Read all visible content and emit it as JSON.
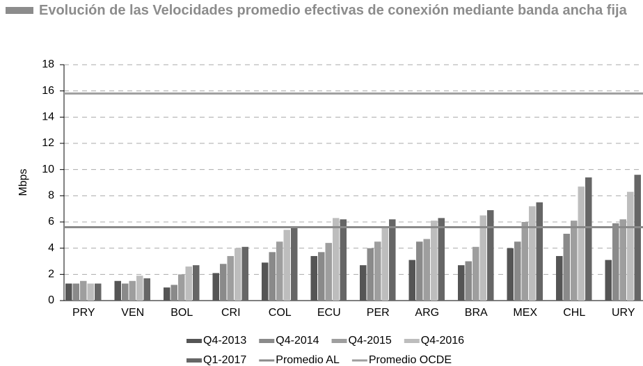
{
  "chart_data": {
    "type": "bar",
    "title": "Evolución de las Velocidades promedio efectivas de conexión mediante banda ancha fija",
    "y_label": "Mbps",
    "categories": [
      "PRY",
      "VEN",
      "BOL",
      "CRI",
      "COL",
      "ECU",
      "PER",
      "ARG",
      "BRA",
      "MEX",
      "CHL",
      "URY"
    ],
    "series": [
      {
        "name": "Q4-2013",
        "color": "#555555",
        "values": [
          1.3,
          1.5,
          1.0,
          2.1,
          2.9,
          3.4,
          2.7,
          3.1,
          2.7,
          4.0,
          3.4,
          3.1
        ]
      },
      {
        "name": "Q4-2014",
        "color": "#8a8a8a",
        "values": [
          1.3,
          1.3,
          1.2,
          2.8,
          3.7,
          3.7,
          4.0,
          4.5,
          3.0,
          4.5,
          5.1,
          5.9
        ]
      },
      {
        "name": "Q4-2015",
        "color": "#9e9e9e",
        "values": [
          1.5,
          1.5,
          2.0,
          3.4,
          4.5,
          4.4,
          4.5,
          4.7,
          4.1,
          6.0,
          6.1,
          6.2
        ]
      },
      {
        "name": "Q4-2016",
        "color": "#bdbdbd",
        "values": [
          1.3,
          1.9,
          2.6,
          4.0,
          5.4,
          6.3,
          5.6,
          6.1,
          6.5,
          7.2,
          8.7,
          8.3
        ]
      },
      {
        "name": "Q1-2017",
        "color": "#666666",
        "values": [
          1.3,
          1.7,
          2.7,
          4.1,
          5.6,
          6.2,
          6.2,
          6.3,
          6.9,
          7.5,
          9.4,
          9.6
        ]
      }
    ],
    "reference_lines": [
      {
        "name": "Promedio AL",
        "color": "#8a8a8a",
        "value": 5.6
      },
      {
        "name": "Promedio OCDE",
        "color": "#9e9e9e",
        "value": 15.8
      }
    ],
    "ylim": [
      0,
      18
    ],
    "yticks": [
      0,
      2,
      4,
      6,
      8,
      10,
      12,
      14,
      16,
      18
    ],
    "grid": true
  }
}
